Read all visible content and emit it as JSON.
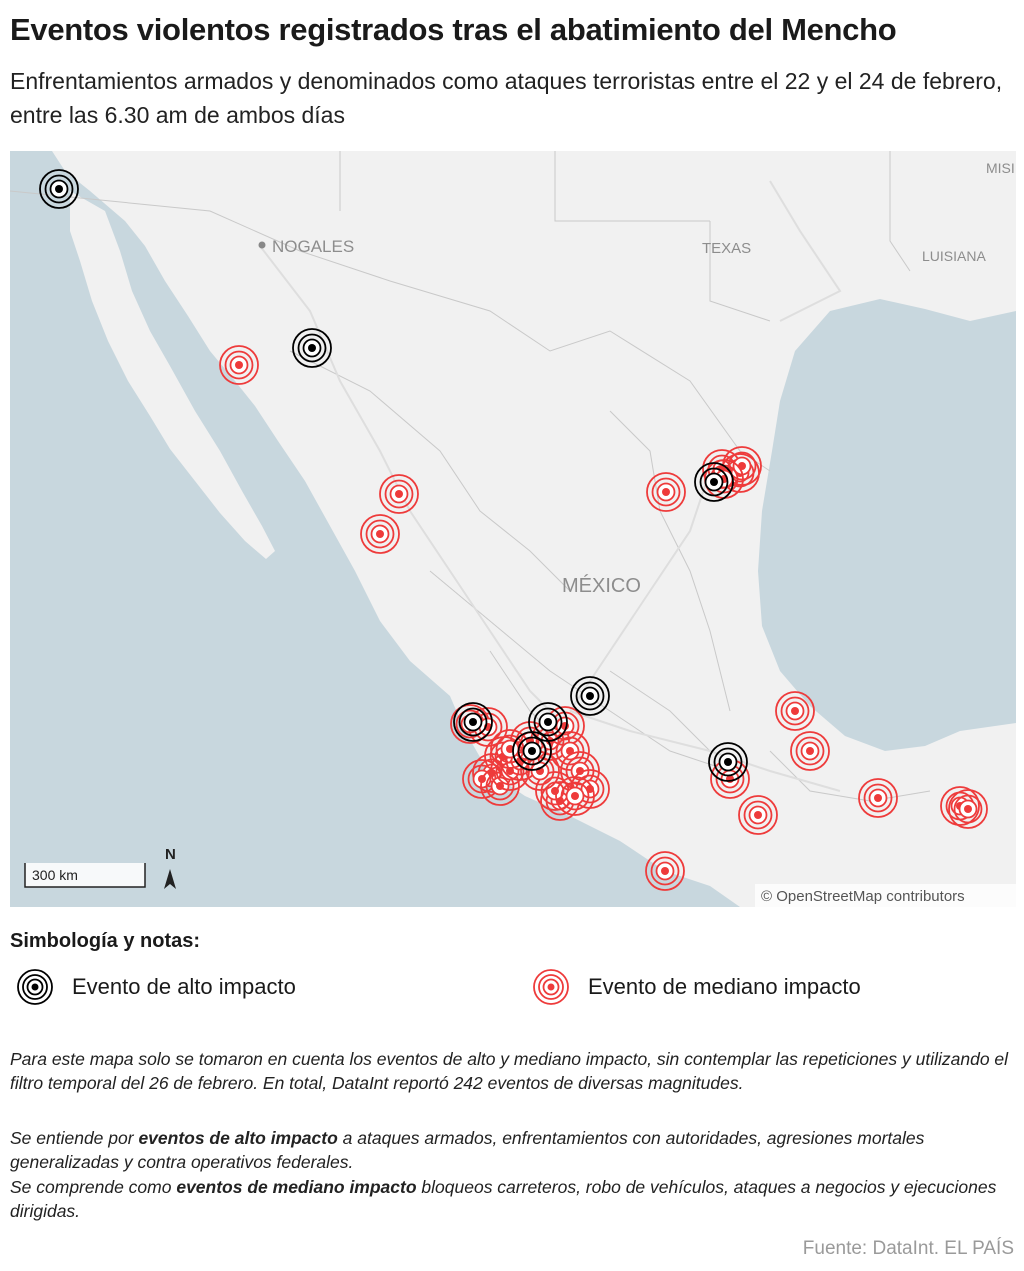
{
  "header": {
    "title": "Eventos violentos registrados tras el abatimiento del Mencho",
    "subtitle": "Enfrentamientos armados y denominados como ataques terroristas entre el 22 y el 24 de febrero, entre las 6.30 am de ambos días"
  },
  "map": {
    "labels": {
      "nogales": "NOGALES",
      "texas": "TEXAS",
      "luisiana": "LUISIANA",
      "misi": "MISI",
      "mexico": "MÉXICO"
    },
    "scale_label": "300 km",
    "north_label": "N",
    "attribution": "© OpenStreetMap contributors",
    "colors": {
      "land": "#f1f1f1",
      "water": "#c8d7de",
      "high_impact": "#000000",
      "medium_impact": "#ee3b3b"
    }
  },
  "legend": {
    "title": "Simbología y notas:",
    "high_label": "Evento de alto impacto",
    "medium_label": "Evento de mediano impacto",
    "high_icon": "concentric-circle-icon",
    "medium_icon": "concentric-circle-icon"
  },
  "notes": {
    "p1": "Para este mapa solo se tomaron en cuenta los eventos de alto y mediano impacto, sin contemplar las repeticiones y utilizando el filtro temporal del 26 de febrero. En total, DataInt reportó 242 eventos de diversas magnitudes.",
    "p2_pre": "Se entiende por ",
    "p2_bold": "eventos de alto impacto",
    "p2_post": " a ataques armados, enfrentamientos con autoridades, agresiones mortales generalizadas y contra operativos federales.",
    "p3_pre": "Se comprende como ",
    "p3_bold": "eventos de mediano impacto",
    "p3_post": " bloqueos carreteros, robo de vehículos, ataques a negocios y ejecuciones dirigidas."
  },
  "source": "Fuente: DataInt. EL PAÍS"
}
